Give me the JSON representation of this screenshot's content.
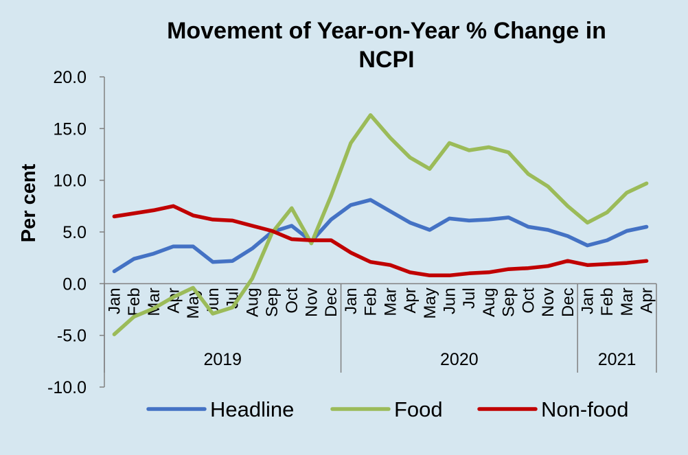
{
  "chart_data": {
    "type": "line",
    "title_lines": [
      "Movement of Year-on-Year % Change in",
      "NCPI"
    ],
    "ylabel": "Per cent",
    "xlabel": "",
    "ylim": [
      -10,
      20
    ],
    "yticks": [
      -10,
      -5,
      0,
      5,
      10,
      15,
      20
    ],
    "ytick_labels": [
      "-10.0",
      "-5.0",
      "0.0",
      "5.0",
      "10.0",
      "15.0",
      "20.0"
    ],
    "categories": [
      "Jan",
      "Feb",
      "Mar",
      "Apr",
      "May",
      "Jun",
      "Jul",
      "Aug",
      "Sep",
      "Oct",
      "Nov",
      "Dec",
      "Jan",
      "Feb",
      "Mar",
      "Apr",
      "May",
      "Jun",
      "Jul",
      "Aug",
      "Sep",
      "Oct",
      "Nov",
      "Dec",
      "Jan",
      "Feb",
      "Mar",
      "Apr"
    ],
    "year_groups": [
      {
        "label": "2019",
        "start": 0,
        "count": 12
      },
      {
        "label": "2020",
        "start": 12,
        "count": 12
      },
      {
        "label": "2021",
        "start": 24,
        "count": 4
      }
    ],
    "series": [
      {
        "name": "Headline",
        "color": "#4472c4",
        "values": [
          1.2,
          2.4,
          2.9,
          3.6,
          3.6,
          2.1,
          2.2,
          3.4,
          5.0,
          5.6,
          4.1,
          6.2,
          7.6,
          8.1,
          7.0,
          5.9,
          5.2,
          6.3,
          6.1,
          6.2,
          6.4,
          5.5,
          5.2,
          4.6,
          3.7,
          4.2,
          5.1,
          5.5
        ]
      },
      {
        "name": "Food",
        "color": "#9bbb59",
        "values": [
          -4.9,
          -3.2,
          -2.4,
          -1.3,
          -0.4,
          -2.9,
          -2.3,
          0.5,
          4.9,
          7.3,
          3.9,
          8.5,
          13.6,
          16.3,
          14.1,
          12.2,
          11.1,
          13.6,
          12.9,
          13.2,
          12.7,
          10.6,
          9.4,
          7.5,
          5.9,
          6.9,
          8.8,
          9.7
        ]
      },
      {
        "name": "Non-food",
        "color": "#c00000",
        "values": [
          6.5,
          6.8,
          7.1,
          7.5,
          6.6,
          6.2,
          6.1,
          5.6,
          5.1,
          4.3,
          4.2,
          4.2,
          3.0,
          2.1,
          1.8,
          1.1,
          0.8,
          0.8,
          1.0,
          1.1,
          1.4,
          1.5,
          1.7,
          2.2,
          1.8,
          1.9,
          2.0,
          2.2
        ]
      }
    ],
    "legend": "bottom",
    "grid": false
  }
}
